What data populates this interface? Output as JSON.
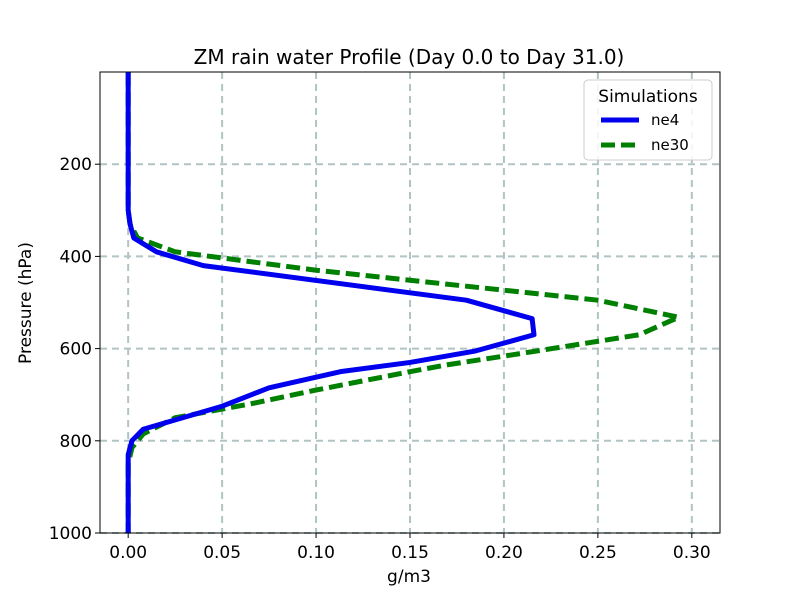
{
  "chart_data": {
    "type": "line",
    "title": "ZM rain water Profile (Day 0.0 to Day 31.0)",
    "xlabel": "g/m3",
    "ylabel": "Pressure (hPa)",
    "xlim": [
      -0.015,
      0.315
    ],
    "ylim": [
      1000,
      0
    ],
    "y_inverted": true,
    "x_ticks": [
      0.0,
      0.05,
      0.1,
      0.15,
      0.2,
      0.25,
      0.3
    ],
    "x_tick_labels": [
      "0.00",
      "0.05",
      "0.10",
      "0.15",
      "0.20",
      "0.25",
      "0.30"
    ],
    "y_ticks": [
      200,
      400,
      600,
      800,
      1000
    ],
    "y_tick_labels": [
      "200",
      "400",
      "600",
      "800",
      "1000"
    ],
    "grid": true,
    "legend": {
      "title": "Simulations",
      "position": "top-right"
    },
    "series": [
      {
        "name": "ne4",
        "color": "#0000ee",
        "style": "solid",
        "points": [
          [
            0.0,
            0
          ],
          [
            0.0,
            100
          ],
          [
            0.0,
            200
          ],
          [
            0.0,
            300
          ],
          [
            0.001,
            330
          ],
          [
            0.003,
            360
          ],
          [
            0.015,
            390
          ],
          [
            0.04,
            420
          ],
          [
            0.18,
            495
          ],
          [
            0.215,
            535
          ],
          [
            0.216,
            570
          ],
          [
            0.185,
            605
          ],
          [
            0.15,
            630
          ],
          [
            0.113,
            650
          ],
          [
            0.075,
            685
          ],
          [
            0.05,
            725
          ],
          [
            0.008,
            775
          ],
          [
            0.002,
            800
          ],
          [
            0.0,
            830
          ],
          [
            0.0,
            870
          ],
          [
            0.0,
            900
          ],
          [
            0.0,
            1000
          ]
        ]
      },
      {
        "name": "ne30",
        "color": "#008000",
        "style": "dashed",
        "points": [
          [
            0.0,
            0
          ],
          [
            0.0,
            100
          ],
          [
            0.0,
            200
          ],
          [
            0.0,
            300
          ],
          [
            0.001,
            330
          ],
          [
            0.005,
            360
          ],
          [
            0.025,
            390
          ],
          [
            0.1,
            430
          ],
          [
            0.25,
            495
          ],
          [
            0.293,
            532
          ],
          [
            0.272,
            570
          ],
          [
            0.21,
            610
          ],
          [
            0.17,
            635
          ],
          [
            0.15,
            650
          ],
          [
            0.1,
            690
          ],
          [
            0.065,
            720
          ],
          [
            0.025,
            750
          ],
          [
            0.008,
            785
          ],
          [
            0.002,
            815
          ],
          [
            0.0,
            850
          ],
          [
            0.0,
            900
          ],
          [
            0.0,
            1000
          ]
        ]
      }
    ]
  }
}
